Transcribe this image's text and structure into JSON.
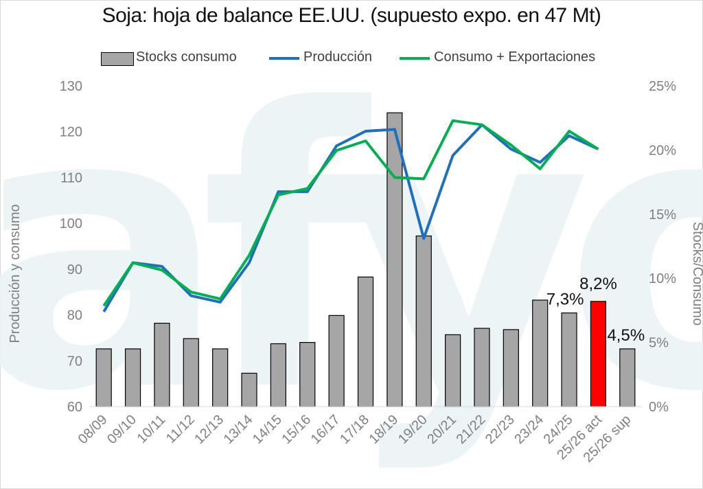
{
  "chart_data": {
    "type": "bar",
    "title": "Soja: hoja de balance EE.UU. (supuesto expo. en 47 Mt)",
    "categories": [
      "08/09",
      "09/10",
      "10/11",
      "11/12",
      "12/13",
      "13/14",
      "14/15",
      "15/16",
      "16/17",
      "17/18",
      "18/19",
      "19/20",
      "20/21",
      "21/22",
      "22/23",
      "23/24",
      "24/25",
      "25/26 act",
      "25/26 sup"
    ],
    "y_left": {
      "label": "Producción y consumo",
      "min": 60,
      "max": 130,
      "ticks": [
        "60",
        "70",
        "80",
        "90",
        "100",
        "110",
        "120",
        "130"
      ]
    },
    "y_right": {
      "label": "Stocks/Consumo",
      "min": 0,
      "max": 25,
      "ticks": [
        "0%",
        "5%",
        "10%",
        "15%",
        "20%",
        "25%"
      ]
    },
    "legend_position": "top",
    "series": [
      {
        "name": "Stocks consumo",
        "type": "bar",
        "axis": "right",
        "color": "#a6a6a6",
        "values": [
          4.5,
          4.5,
          6.5,
          5.3,
          4.5,
          2.6,
          4.9,
          5.0,
          7.1,
          10.1,
          22.9,
          13.3,
          5.6,
          6.1,
          6.0,
          8.3,
          7.3,
          8.2,
          4.5
        ]
      },
      {
        "name": "Producción",
        "type": "line",
        "axis": "left",
        "color": "#1f6fbf",
        "values": [
          80.7,
          91.4,
          90.6,
          84.2,
          82.8,
          91.4,
          106.9,
          106.9,
          116.9,
          120.1,
          120.5,
          96.7,
          114.8,
          121.5,
          116.2,
          113.3,
          119.1,
          116.2,
          null
        ]
      },
      {
        "name": "Consumo + Exportaciones",
        "type": "line",
        "axis": "left",
        "color": "#00b050",
        "values": [
          82.0,
          91.4,
          89.8,
          85.0,
          83.5,
          93.0,
          106.2,
          107.6,
          115.9,
          118.0,
          110.0,
          109.7,
          122.4,
          121.5,
          117.1,
          111.9,
          120.1,
          116.2,
          null
        ]
      }
    ],
    "highlight": {
      "category": "25/26 act",
      "color": "#ff0000"
    },
    "data_labels": [
      {
        "category": "24/25",
        "text": "7,3%"
      },
      {
        "category": "25/26 act",
        "text": "8,2%"
      },
      {
        "category": "25/26 sup",
        "text": "4,5%"
      }
    ],
    "watermark": "afyo"
  }
}
